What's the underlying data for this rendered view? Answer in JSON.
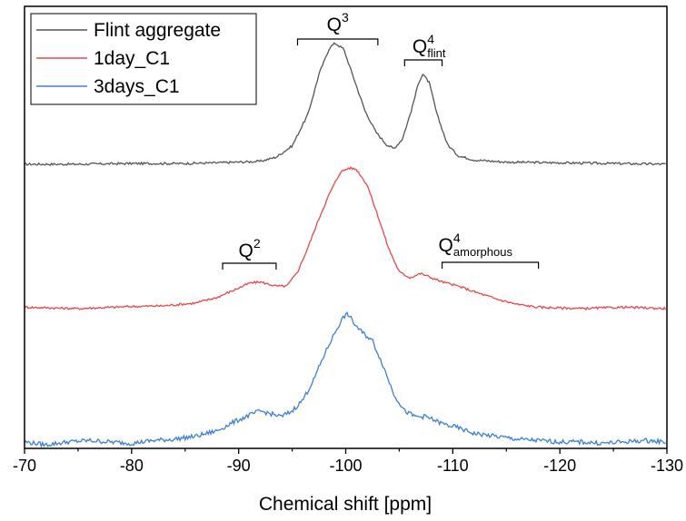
{
  "chart_data": {
    "type": "line",
    "xlabel": "Chemical shift [ppm]",
    "ylabel": "",
    "xlim": [
      -70,
      -130
    ],
    "x_ticks": [
      "-70",
      "-80",
      "-90",
      "-100",
      "-110",
      "-120",
      "-130"
    ],
    "x_tick_values": [
      -70,
      -80,
      -90,
      -100,
      -110,
      -120,
      -130
    ],
    "yaxis_ticks_visible": false,
    "legend_position": "top-left",
    "series": [
      {
        "name": "Flint aggregate",
        "color": "#555555",
        "points": [
          [
            -70,
            0.02
          ],
          [
            -75,
            0.02
          ],
          [
            -80,
            0.025
          ],
          [
            -85,
            0.025
          ],
          [
            -88,
            0.03
          ],
          [
            -90,
            0.035
          ],
          [
            -92,
            0.04
          ],
          [
            -93.5,
            0.07
          ],
          [
            -95,
            0.15
          ],
          [
            -96.5,
            0.38
          ],
          [
            -97.5,
            0.66
          ],
          [
            -98.5,
            0.85
          ],
          [
            -99,
            0.88
          ],
          [
            -99.8,
            0.84
          ],
          [
            -100.8,
            0.62
          ],
          [
            -101.8,
            0.4
          ],
          [
            -102.8,
            0.25
          ],
          [
            -103.8,
            0.16
          ],
          [
            -104.5,
            0.13
          ],
          [
            -105.3,
            0.2
          ],
          [
            -106.2,
            0.42
          ],
          [
            -106.8,
            0.6
          ],
          [
            -107.2,
            0.66
          ],
          [
            -107.8,
            0.6
          ],
          [
            -108.5,
            0.38
          ],
          [
            -109.5,
            0.16
          ],
          [
            -110.5,
            0.08
          ],
          [
            -112,
            0.05
          ],
          [
            -115,
            0.035
          ],
          [
            -120,
            0.03
          ],
          [
            -125,
            0.025
          ],
          [
            -130,
            0.02
          ]
        ]
      },
      {
        "name": "1day_C1",
        "color": "#e8474b",
        "points": [
          [
            -70,
            0.01
          ],
          [
            -75,
            0.0
          ],
          [
            -80,
            0.015
          ],
          [
            -83,
            0.02
          ],
          [
            -86,
            0.04
          ],
          [
            -88,
            0.08
          ],
          [
            -89.5,
            0.13
          ],
          [
            -91,
            0.18
          ],
          [
            -92,
            0.19
          ],
          [
            -93.5,
            0.16
          ],
          [
            -94.5,
            0.16
          ],
          [
            -95.5,
            0.26
          ],
          [
            -96.5,
            0.44
          ],
          [
            -97.5,
            0.64
          ],
          [
            -98.5,
            0.82
          ],
          [
            -99.5,
            0.97
          ],
          [
            -100.3,
            1.0
          ],
          [
            -101,
            0.99
          ],
          [
            -102,
            0.88
          ],
          [
            -103,
            0.66
          ],
          [
            -104,
            0.43
          ],
          [
            -105,
            0.26
          ],
          [
            -106,
            0.22
          ],
          [
            -107,
            0.25
          ],
          [
            -108,
            0.22
          ],
          [
            -109,
            0.19
          ],
          [
            -110.5,
            0.16
          ],
          [
            -112,
            0.12
          ],
          [
            -114,
            0.07
          ],
          [
            -116,
            0.03
          ],
          [
            -118,
            0.01
          ],
          [
            -122,
            0.0
          ],
          [
            -126,
            0.01
          ],
          [
            -130,
            0.0
          ]
        ]
      },
      {
        "name": "3days_C1",
        "color": "#3d7fd6",
        "points": [
          [
            -70,
            0.02
          ],
          [
            -72,
            0.0
          ],
          [
            -74,
            0.02
          ],
          [
            -76,
            0.03
          ],
          [
            -78,
            0.02
          ],
          [
            -80,
            0.01
          ],
          [
            -82,
            0.03
          ],
          [
            -84,
            0.04
          ],
          [
            -86,
            0.06
          ],
          [
            -88,
            0.1
          ],
          [
            -89.5,
            0.16
          ],
          [
            -91,
            0.21
          ],
          [
            -92,
            0.24
          ],
          [
            -93,
            0.22
          ],
          [
            -94,
            0.2
          ],
          [
            -95,
            0.24
          ],
          [
            -96,
            0.32
          ],
          [
            -97,
            0.46
          ],
          [
            -98,
            0.64
          ],
          [
            -99,
            0.8
          ],
          [
            -99.8,
            0.91
          ],
          [
            -100.2,
            0.93
          ],
          [
            -100.8,
            0.86
          ],
          [
            -101.5,
            0.8
          ],
          [
            -102.5,
            0.74
          ],
          [
            -103.5,
            0.56
          ],
          [
            -104.5,
            0.36
          ],
          [
            -105.5,
            0.24
          ],
          [
            -106.5,
            0.2
          ],
          [
            -107.5,
            0.2
          ],
          [
            -109,
            0.15
          ],
          [
            -110.5,
            0.12
          ],
          [
            -112,
            0.08
          ],
          [
            -114,
            0.06
          ],
          [
            -116,
            0.04
          ],
          [
            -118,
            0.03
          ],
          [
            -120,
            0.02
          ],
          [
            -122,
            0.02
          ],
          [
            -124,
            0.01
          ],
          [
            -126,
            0.02
          ],
          [
            -128,
            0.03
          ],
          [
            -130,
            0.02
          ]
        ]
      }
    ],
    "annotations": [
      {
        "main": "Q",
        "sup": "3",
        "sub": "",
        "range": [
          -95.5,
          -103
        ]
      },
      {
        "main": "Q",
        "sup": "4",
        "sub": "flint",
        "range": [
          -105.5,
          -109
        ]
      },
      {
        "main": "Q",
        "sup": "2",
        "sub": "",
        "range": [
          -88.5,
          -93.5
        ]
      },
      {
        "main": "Q",
        "sup": "4",
        "sub": "amorphous",
        "range": [
          -109,
          -118
        ]
      }
    ]
  }
}
